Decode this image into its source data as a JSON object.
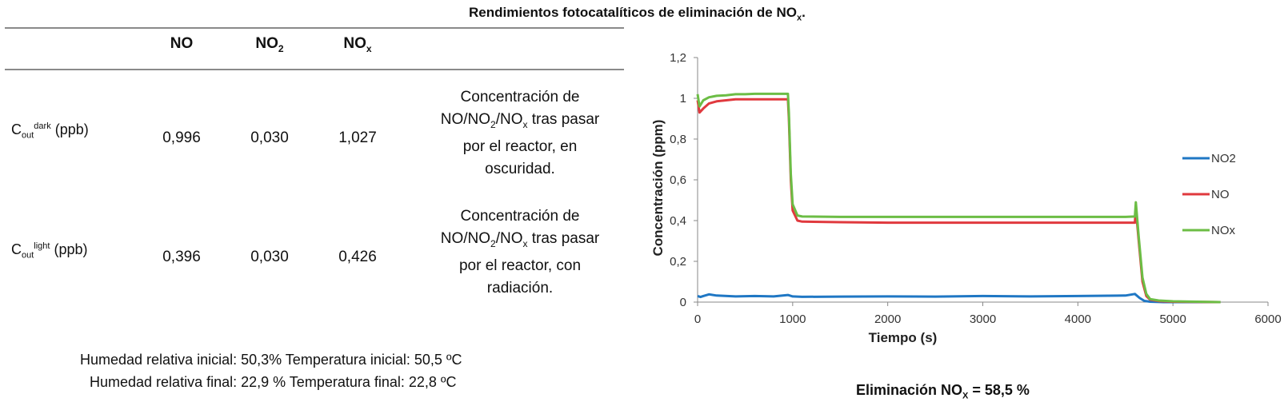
{
  "title": {
    "text": "Rendimientos fotocatalíticos de eliminación de NO",
    "sub": "x",
    "tail": "."
  },
  "table": {
    "headers": [
      {
        "main": "NO",
        "sub": ""
      },
      {
        "main": "NO",
        "sub": "2"
      },
      {
        "main": "NO",
        "sub": "x"
      }
    ],
    "rows": [
      {
        "label_main": "C",
        "label_sub": "out",
        "label_sup": "dark",
        "label_unit": " (ppb)",
        "values": [
          "0,996",
          "0,030",
          "1,027"
        ],
        "desc": {
          "line1": "Concentración de",
          "p1": "NO/NO",
          "s1": "2",
          "p2": "/NO",
          "s2": "x",
          "p3": " tras pasar",
          "line3": "por el reactor, en",
          "line4": "oscuridad."
        }
      },
      {
        "label_main": "C",
        "label_sub": "out",
        "label_sup": "light",
        "label_unit": " (ppb)",
        "values": [
          "0,396",
          "0,030",
          "0,426"
        ],
        "desc": {
          "line1": "Concentración de",
          "p1": "NO/NO",
          "s1": "2",
          "p2": "/NO",
          "s2": "x",
          "p3": " tras pasar",
          "line3": "por el reactor, con",
          "line4": "radiación."
        }
      }
    ]
  },
  "conditions": [
    "Humedad relativa inicial:  50,3%  Temperatura inicial: 50,5 ºC",
    "Humedad relativa final:  22,9 %  Temperatura final: 22,8 ºC"
  ],
  "elimination": {
    "prefix": "Eliminación NO",
    "sub": "X",
    "suffix": " = 58,5 %"
  },
  "chart_data": {
    "type": "line",
    "xlabel": "Tiempo (s)",
    "ylabel": "Concentración (ppm)",
    "xlim": [
      0,
      6000
    ],
    "ylim": [
      0,
      1.2
    ],
    "xticks": [
      "0",
      "1000",
      "2000",
      "3000",
      "4000",
      "5000",
      "6000"
    ],
    "yticks": [
      "0",
      "0,2",
      "0,4",
      "0,6",
      "0,8",
      "1",
      "1,2"
    ],
    "grid": false,
    "legend_position": "right",
    "series": [
      {
        "name": "NO2",
        "color": "#1f77c4",
        "x": [
          0,
          30,
          60,
          120,
          200,
          400,
          600,
          800,
          950,
          1000,
          1100,
          1500,
          2000,
          2500,
          3000,
          3500,
          4000,
          4500,
          4600,
          4650,
          4700,
          4760,
          4900,
          5500
        ],
        "y": [
          0.03,
          0.025,
          0.03,
          0.038,
          0.032,
          0.028,
          0.03,
          0.028,
          0.035,
          0.028,
          0.026,
          0.027,
          0.028,
          0.027,
          0.03,
          0.028,
          0.03,
          0.032,
          0.04,
          0.02,
          0.006,
          0.002,
          0.0,
          0.0
        ]
      },
      {
        "name": "NO",
        "color": "#e0393e",
        "x": [
          0,
          20,
          60,
          120,
          200,
          300,
          400,
          500,
          600,
          700,
          800,
          950,
          960,
          980,
          1000,
          1050,
          1100,
          1500,
          2000,
          2500,
          3000,
          3500,
          4000,
          4500,
          4600,
          4610,
          4640,
          4680,
          4720,
          4760,
          4850,
          5000,
          5500
        ],
        "y": [
          0.99,
          0.93,
          0.95,
          0.975,
          0.985,
          0.99,
          0.995,
          0.995,
          0.995,
          0.995,
          0.995,
          0.995,
          0.9,
          0.6,
          0.45,
          0.4,
          0.395,
          0.392,
          0.39,
          0.39,
          0.39,
          0.39,
          0.39,
          0.39,
          0.39,
          0.46,
          0.3,
          0.1,
          0.03,
          0.012,
          0.005,
          0.002,
          0.0
        ]
      },
      {
        "name": "NOx",
        "color": "#6cbd45",
        "x": [
          0,
          20,
          60,
          120,
          200,
          300,
          400,
          500,
          600,
          700,
          800,
          950,
          960,
          980,
          1000,
          1050,
          1100,
          1500,
          2000,
          2500,
          3000,
          3500,
          4000,
          4500,
          4600,
          4610,
          4640,
          4680,
          4720,
          4760,
          4850,
          5000,
          5500
        ],
        "y": [
          1.02,
          0.96,
          0.99,
          1.005,
          1.012,
          1.015,
          1.02,
          1.02,
          1.022,
          1.022,
          1.022,
          1.022,
          0.93,
          0.63,
          0.48,
          0.425,
          0.42,
          0.418,
          0.418,
          0.418,
          0.418,
          0.418,
          0.418,
          0.418,
          0.42,
          0.49,
          0.32,
          0.12,
          0.04,
          0.015,
          0.008,
          0.004,
          0.0
        ]
      }
    ]
  }
}
